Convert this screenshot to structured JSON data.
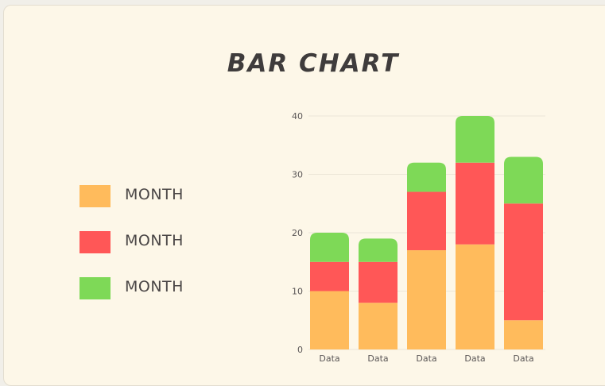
{
  "chart_data": {
    "type": "bar",
    "stacked": true,
    "title": "BAR CHART",
    "categories": [
      "Data",
      "Data",
      "Data",
      "Data",
      "Data"
    ],
    "series": [
      {
        "name": "MONTH",
        "color": "#ffbb5c",
        "values": [
          10,
          8,
          17,
          18,
          5
        ]
      },
      {
        "name": "MONTH",
        "color": "#ff5757",
        "values": [
          5,
          7,
          10,
          14,
          20
        ]
      },
      {
        "name": "MONTH",
        "color": "#7ed957",
        "values": [
          5,
          4,
          5,
          8,
          8
        ]
      }
    ],
    "yticks": [
      "0",
      "10",
      "20",
      "30",
      "40"
    ],
    "ylim": [
      0,
      40
    ],
    "xlabel": "",
    "ylabel": "",
    "grid": true,
    "legend": "left"
  },
  "colors": {
    "background": "#fdf7e8",
    "gridline": "#ece6d8",
    "text": "#3f3c3c"
  }
}
